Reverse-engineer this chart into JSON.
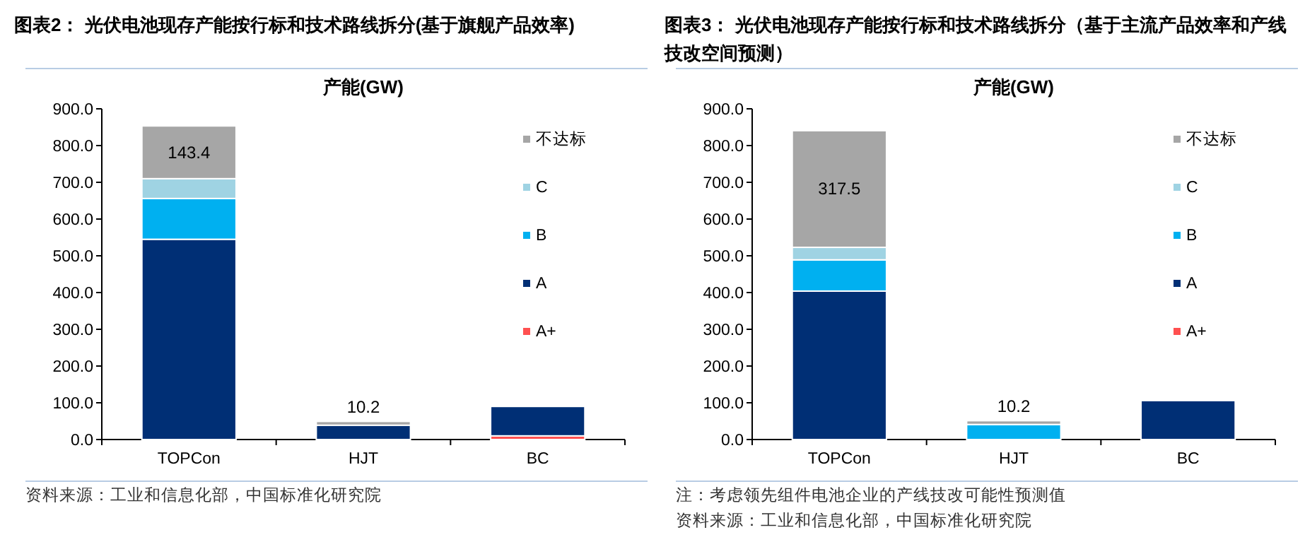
{
  "chart_data": [
    {
      "type": "bar",
      "stacked": true,
      "title": "图表2：  光伏电池现存产能按行标和技术路线拆分(基于旗舰产品效率)",
      "subtitle": "产能(GW)",
      "categories": [
        "TOPCon",
        "HJT",
        "BC"
      ],
      "series": [
        {
          "name": "A+",
          "color": "#ff5050",
          "values": [
            null,
            null,
            10
          ]
        },
        {
          "name": "A",
          "color": "#002f75",
          "values": [
            545,
            39,
            80
          ]
        },
        {
          "name": "B",
          "color": "#00b0f0",
          "values": [
            111,
            null,
            null
          ]
        },
        {
          "name": "C",
          "color": "#9fd3e3",
          "values": [
            54,
            null,
            null
          ]
        },
        {
          "name": "不达标",
          "color": "#a6a6a6",
          "values": [
            143.4,
            10.2,
            null
          ],
          "value_labels": [
            "143.4",
            "10.2",
            null
          ]
        }
      ],
      "ylim": [
        0,
        900
      ],
      "yticks": [
        {
          "value": 0,
          "label": "0.0"
        },
        {
          "value": 100,
          "label": "100.0"
        },
        {
          "value": 200,
          "label": "200.0"
        },
        {
          "value": 300,
          "label": "300.0"
        },
        {
          "value": 400,
          "label": "400.0"
        },
        {
          "value": 500,
          "label": "500.0"
        },
        {
          "value": 600,
          "label": "600.0"
        },
        {
          "value": 700,
          "label": "700.0"
        },
        {
          "value": 800,
          "label": "800.0"
        },
        {
          "value": 900,
          "label": "900.0"
        }
      ],
      "legend": "right",
      "annotations": [
        "资料来源：工业和信息化部，中国标准化研究院"
      ]
    },
    {
      "type": "bar",
      "stacked": true,
      "title": "图表3：  光伏电池现存产能按行标和技术路线拆分（基于主流产品效率和产线技改空间预测）",
      "subtitle": "产能(GW)",
      "categories": [
        "TOPCon",
        "HJT",
        "BC"
      ],
      "series": [
        {
          "name": "A+",
          "color": "#ff5050",
          "values": [
            null,
            null,
            null
          ]
        },
        {
          "name": "A",
          "color": "#002f75",
          "values": [
            404,
            null,
            106
          ]
        },
        {
          "name": "B",
          "color": "#00b0f0",
          "values": [
            85,
            41,
            null
          ]
        },
        {
          "name": "C",
          "color": "#9fd3e3",
          "values": [
            34,
            null,
            null
          ]
        },
        {
          "name": "不达标",
          "color": "#a6a6a6",
          "values": [
            317.5,
            10.2,
            null
          ],
          "value_labels": [
            "317.5",
            "10.2",
            null
          ]
        }
      ],
      "ylim": [
        0,
        900
      ],
      "yticks": [
        {
          "value": 0,
          "label": "0.0"
        },
        {
          "value": 100,
          "label": "100.0"
        },
        {
          "value": 200,
          "label": "200.0"
        },
        {
          "value": 300,
          "label": "300.0"
        },
        {
          "value": 400,
          "label": "400.0"
        },
        {
          "value": 500,
          "label": "500.0"
        },
        {
          "value": 600,
          "label": "600.0"
        },
        {
          "value": 700,
          "label": "700.0"
        },
        {
          "value": 800,
          "label": "800.0"
        },
        {
          "value": 900,
          "label": "900.0"
        }
      ],
      "legend": "right",
      "annotations": [
        "注：考虑领先组件电池企业的产线技改可能性预测值",
        "资料来源：工业和信息化部，中国标准化研究院"
      ]
    }
  ]
}
